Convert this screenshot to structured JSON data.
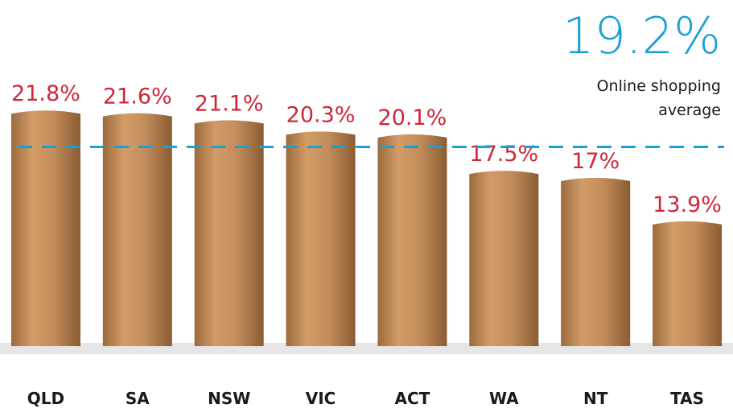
{
  "chart_data": {
    "type": "bar",
    "categories": [
      "QLD",
      "SA",
      "NSW",
      "VIC",
      "ACT",
      "WA",
      "NT",
      "TAS"
    ],
    "values": [
      21.8,
      21.6,
      21.1,
      20.3,
      20.1,
      17.5,
      17,
      13.9
    ],
    "value_labels": [
      "21.8%",
      "21.6%",
      "21.1%",
      "20.3%",
      "20.1%",
      "17.5%",
      "17%",
      "13.9%"
    ],
    "color": "#c48e5c",
    "ylim": [
      5,
      22.5
    ],
    "average": {
      "value": 19.2,
      "label": "19.2%",
      "text": [
        "Online shopping",
        "average"
      ],
      "color": "#1aa0d8"
    }
  }
}
